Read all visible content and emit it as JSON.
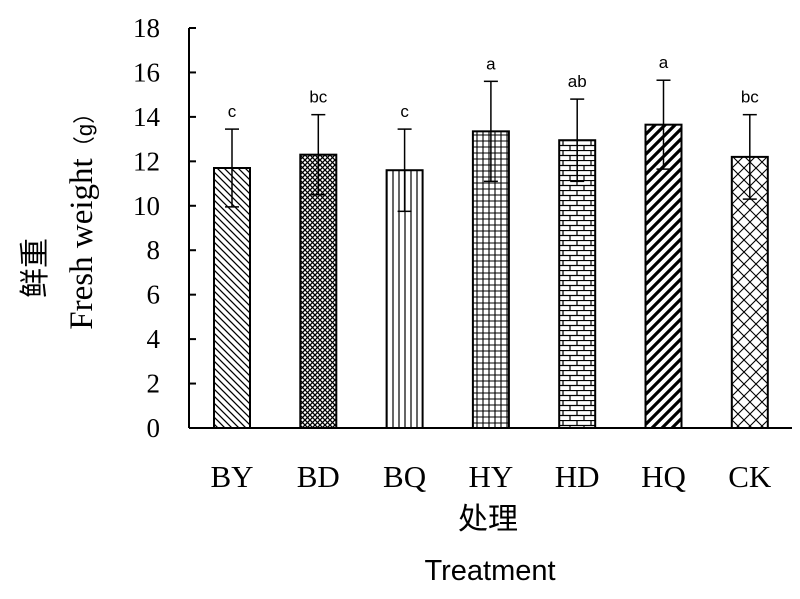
{
  "chart_data": {
    "type": "bar",
    "categories": [
      "BY",
      "BD",
      "BQ",
      "HY",
      "HD",
      "HQ",
      "CK"
    ],
    "values": [
      11.7,
      12.3,
      11.6,
      13.35,
      12.95,
      13.65,
      12.2
    ],
    "error": [
      1.75,
      1.8,
      1.85,
      2.25,
      1.85,
      2.0,
      1.9
    ],
    "significance": [
      "c",
      "bc",
      "c",
      "a",
      "ab",
      "a",
      "bc"
    ],
    "patterns": [
      "back-diagonal",
      "cross-hatch",
      "vertical-lines",
      "grid",
      "brick",
      "wide-diagonal",
      "diagonal-cross"
    ],
    "ylim": [
      0,
      18
    ],
    "yticks": [
      "0",
      "2",
      "4",
      "6",
      "8",
      "10",
      "12",
      "14",
      "16",
      "18"
    ],
    "ylabel_cn": "鲜重",
    "ylabel_en": "Fresh weight",
    "ylabel_unit": "（g）",
    "xlabel_cn": "处理",
    "xlabel_en": "Treatment",
    "grid": false,
    "legend": "none"
  }
}
